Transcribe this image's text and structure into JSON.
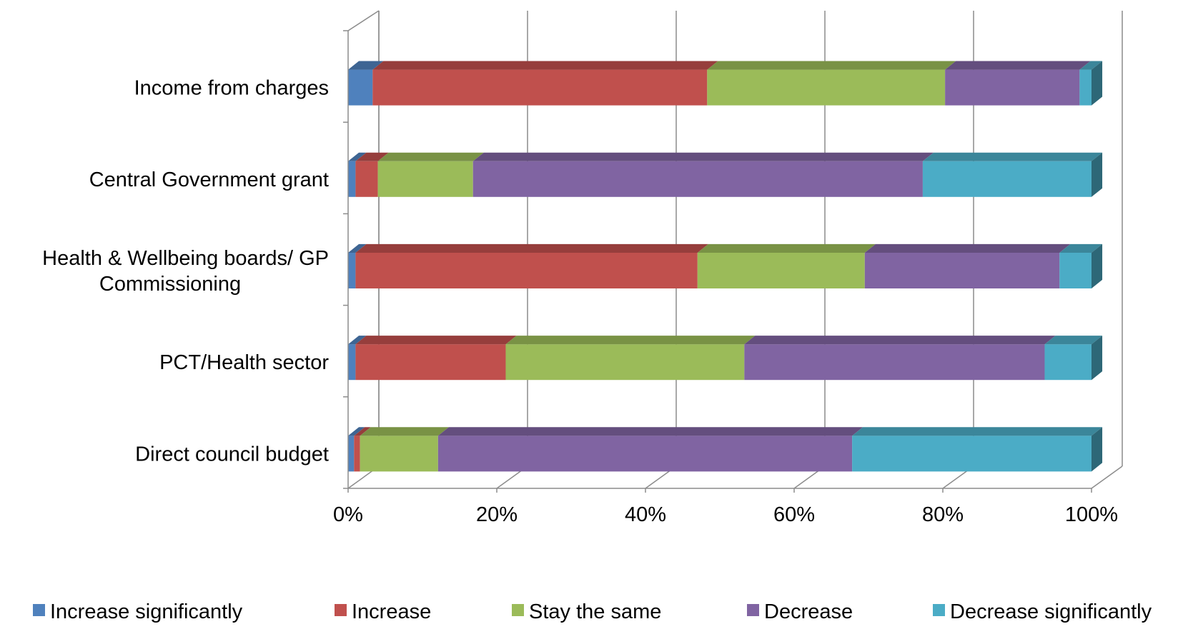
{
  "chart_data": {
    "type": "bar",
    "orientation": "horizontal",
    "stacked": "percent",
    "style": "3d",
    "categories": [
      "Income from charges",
      "Central Government grant",
      "Health & Wellbeing boards/ GP Commissioning",
      "PCT/Health sector",
      "Direct council budget"
    ],
    "category_lines": [
      [
        "Income from charges"
      ],
      [
        "Central Government grant"
      ],
      [
        "Health & Wellbeing boards/ GP",
        "Commissioning"
      ],
      [
        "PCT/Health sector"
      ],
      [
        "Direct council budget"
      ]
    ],
    "series": [
      {
        "name": "Increase significantly",
        "color": "#4F81BD",
        "values": [
          3.3,
          1.0,
          1.0,
          1.0,
          0.8
        ]
      },
      {
        "name": "Increase",
        "color": "#C0504D",
        "values": [
          45.0,
          3.0,
          46.0,
          20.2,
          0.8
        ]
      },
      {
        "name": "Stay the same",
        "color": "#9BBB59",
        "values": [
          32.0,
          12.8,
          22.5,
          32.1,
          10.5
        ]
      },
      {
        "name": "Decrease",
        "color": "#8064A2",
        "values": [
          18.1,
          60.5,
          26.2,
          40.4,
          55.7
        ]
      },
      {
        "name": "Decrease significantly",
        "color": "#4BACC6",
        "values": [
          1.6,
          22.7,
          4.3,
          6.3,
          32.2
        ]
      }
    ],
    "xaxis": {
      "ticks": [
        "0%",
        "20%",
        "40%",
        "60%",
        "80%",
        "100%"
      ],
      "range": [
        0,
        100
      ]
    },
    "grid": true,
    "legend_position": "bottom",
    "title": "",
    "xlabel": "",
    "ylabel": ""
  }
}
